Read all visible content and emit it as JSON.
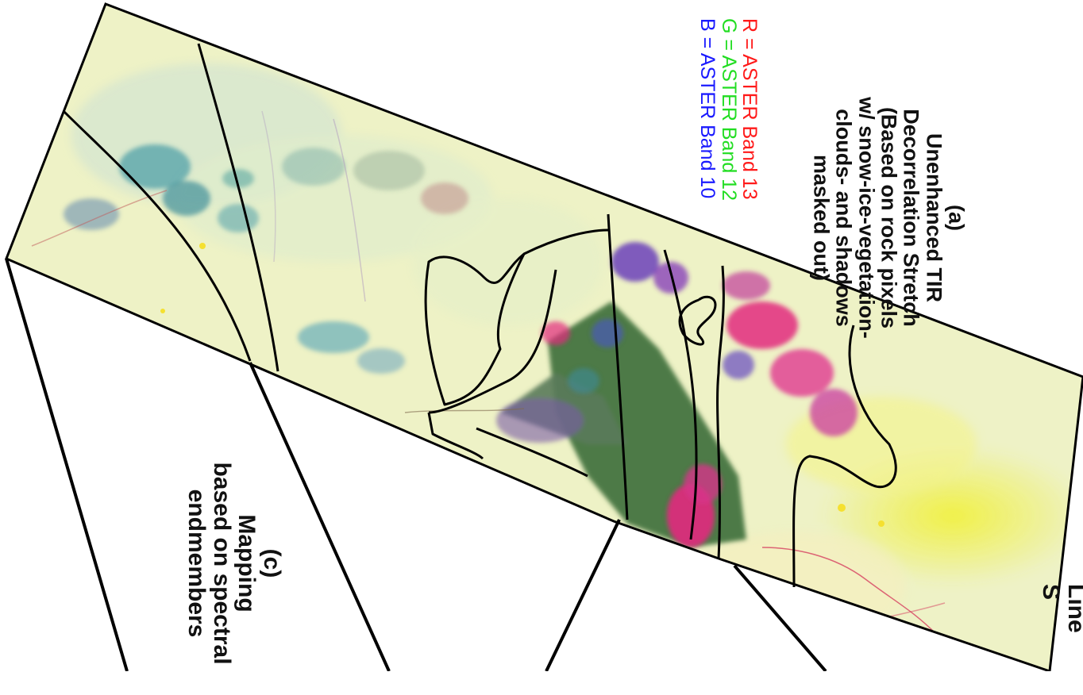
{
  "panel_a": {
    "label": "(a)",
    "lines": [
      "Unenhanced TIR",
      "Decorrelation Stretch",
      "(Based on rock pixels",
      "w/ snow-ice-vegetation-",
      "clouds- and shadows",
      "masked out)"
    ]
  },
  "legend": [
    {
      "text": "R = ASTER Band 13",
      "color": "#ff1a1a"
    },
    {
      "text": "G = ASTER Band 12",
      "color": "#22dd22"
    },
    {
      "text": "B = ASTER Band 10",
      "color": "#1a1aff"
    }
  ],
  "panel_c": {
    "label": "(c)",
    "lines": [
      "Mapping",
      "based on spectral",
      "endmembers"
    ]
  },
  "panel_b_partial": {
    "lines": [
      "Line",
      "S"
    ]
  },
  "image_colors": {
    "background": "#eef2c6",
    "valley_green": "#4e7a46",
    "ridge_magenta": "#e22a7e",
    "ridge_blue": "#5a2ab8",
    "ridge_teal": "#3e8f9a",
    "plain_yellow": "#f2f23a",
    "outline": "#000000"
  }
}
